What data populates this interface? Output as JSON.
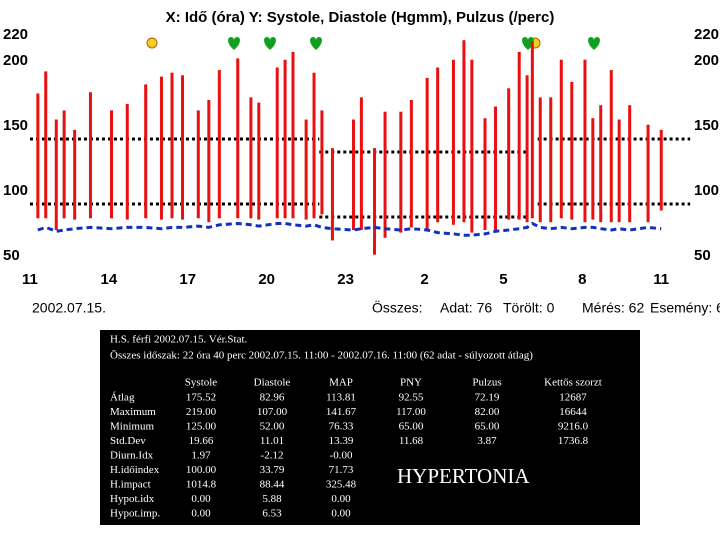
{
  "chart_data": {
    "type": "range-bar",
    "title": "X: Idő (óra)  Y: Systole, Diastole (Hgmm), Pulzus (/perc)",
    "x": [
      11.3,
      11.6,
      12.0,
      12.3,
      12.7,
      13.3,
      14.1,
      14.7,
      15.4,
      16.0,
      16.4,
      16.8,
      17.4,
      17.8,
      18.2,
      18.9,
      19.4,
      19.7,
      20.4,
      20.7,
      21.0,
      21.5,
      21.8,
      22.1,
      22.5,
      23.3,
      23.6,
      24.1,
      24.5,
      25.1,
      25.5,
      26.1,
      26.5,
      27.1,
      27.5,
      27.8,
      28.3,
      28.7,
      29.2,
      29.6,
      29.9,
      30.1,
      30.4,
      30.8,
      31.2,
      31.6,
      32.1,
      32.4,
      32.7,
      33.1,
      33.4,
      33.8,
      34.5,
      35.0
    ],
    "series": [
      {
        "color": "#e81010",
        "values": [
          175,
          192,
          155,
          162,
          147,
          176,
          162,
          167,
          182,
          188,
          191,
          189,
          162,
          170,
          193,
          202,
          172,
          168,
          195,
          201,
          207,
          155,
          191,
          162,
          133,
          155,
          172,
          133,
          161,
          161,
          170,
          187,
          195,
          201,
          216,
          201,
          156,
          165,
          179,
          207,
          189,
          215,
          172,
          172,
          201,
          184,
          201,
          156,
          166,
          193,
          155,
          166,
          151,
          147
        ]
      },
      {
        "color": "#e81010",
        "values": [
          79,
          79,
          70,
          79,
          78,
          79,
          79,
          78,
          79,
          78,
          79,
          78,
          79,
          76,
          79,
          79,
          79,
          78,
          79,
          79,
          79,
          78,
          79,
          82,
          62,
          70,
          70,
          51,
          64,
          68,
          72,
          70,
          76,
          74,
          76,
          68,
          70,
          70,
          78,
          78,
          76,
          79,
          76,
          76,
          79,
          78,
          76,
          78,
          76,
          76,
          76,
          76,
          76,
          85
        ]
      },
      {
        "color": "#1030c0",
        "values": [
          70,
          72,
          69,
          70,
          71,
          72,
          71,
          72,
          72,
          71,
          72,
          72,
          73,
          72,
          74,
          75,
          74,
          73,
          75,
          75,
          74,
          73,
          74,
          72,
          71,
          70,
          71,
          72,
          71,
          70,
          71,
          70,
          68,
          67,
          66,
          66,
          67,
          69,
          70,
          71,
          72,
          75,
          72,
          71,
          72,
          71,
          72,
          72,
          71,
          70,
          71,
          70,
          72,
          71
        ]
      }
    ],
    "reference_lines": [
      {
        "y": 140,
        "x": [
          11,
          22
        ]
      },
      {
        "y": 90,
        "x": [
          11,
          22
        ]
      },
      {
        "y": 130,
        "x": [
          22,
          29.9
        ]
      },
      {
        "y": 80,
        "x": [
          22,
          29.9
        ]
      },
      {
        "y": 140,
        "x": [
          30.3,
          36.1
        ]
      },
      {
        "y": 90,
        "x": [
          30.3,
          36.1
        ]
      }
    ],
    "reference_color": "#000000",
    "xlim": [
      10.8,
      36.2
    ],
    "xticks": [
      11,
      14,
      17,
      20,
      23,
      {
        "value": 26,
        "label": "2"
      },
      {
        "value": 29,
        "label": "5"
      },
      {
        "value": 32,
        "label": "8"
      },
      {
        "value": 35,
        "label": "11"
      }
    ],
    "ylim": [
      50,
      220
    ],
    "yticks": [
      50,
      100,
      150,
      200,
      220
    ],
    "date": "2002.07.15.",
    "totals": [
      "Összes:",
      "Adat: 76",
      "Törölt: 0",
      "Mérés: 62",
      "Esemény: 6"
    ]
  },
  "stats": {
    "header": [
      "H.S. férfi 2002.07.15. Vér.Stat.",
      "Összes időszak: 22 óra 40 perc  2002.07.15. 11:00 - 2002.07.16. 11:00  (62 adat - súlyozott átlag)"
    ],
    "columns": [
      "Systole",
      "Diastole",
      "MAP",
      "PNY",
      "Pulzus",
      "Kettős szorzt"
    ],
    "rows": [
      [
        "Átlag",
        "175.52",
        "82.96",
        "113.81",
        "92.55",
        "72.19",
        "12687"
      ],
      [
        "Maximum",
        "219.00",
        "107.00",
        "141.67",
        "117.00",
        "82.00",
        "16644"
      ],
      [
        "Minimum",
        "125.00",
        "52.00",
        "76.33",
        "65.00",
        "65.00",
        "9216.0"
      ],
      [
        "Std.Dev",
        "19.66",
        "11.01",
        "13.39",
        "11.68",
        "3.87",
        "1736.8"
      ],
      [
        "Diurn.Idx",
        "1.97",
        "-2.12",
        "-0.00"
      ],
      [
        "H.időindex",
        "100.00",
        "33.79",
        "71.73"
      ],
      [
        "H.impact",
        "1014.8",
        "88.44",
        "325.48"
      ],
      [
        "Hypot.idx",
        "0.00",
        "5.88",
        "0.00"
      ],
      [
        "Hypot.imp.",
        "0.00",
        "6.53",
        "0.00"
      ]
    ],
    "diagnosis": "HYPERTONIA"
  }
}
